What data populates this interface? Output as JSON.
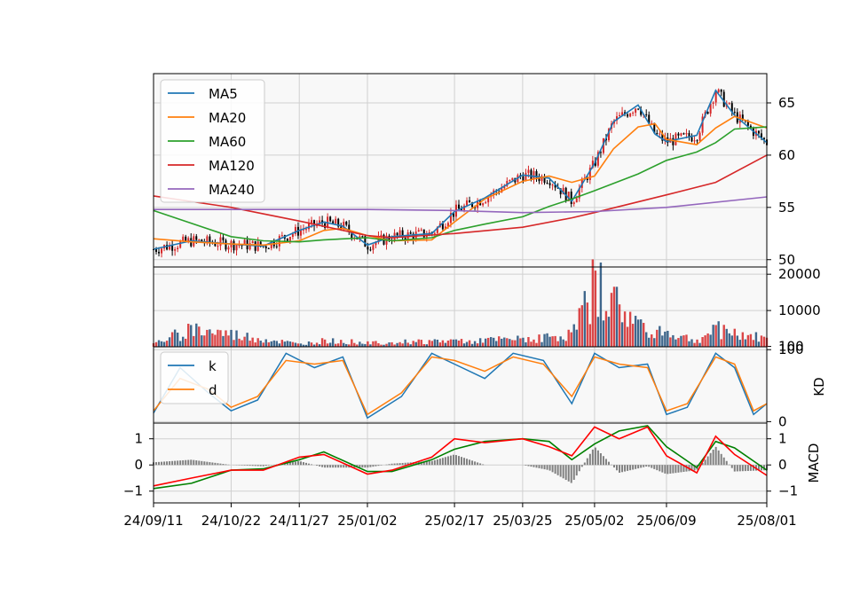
{
  "chart_data": [
    {
      "type": "candlestick",
      "panel": "price",
      "ylim": [
        49.3,
        67.8
      ],
      "yticks": [
        "50",
        "55",
        "60",
        "65"
      ],
      "grid": true,
      "legend_position": "top-left",
      "candle_colors": {
        "up": "#d62728",
        "down": "#000000"
      },
      "x_dates": [
        "24/09/11",
        "24/10/22",
        "24/11/27",
        "25/01/02",
        "25/02/17",
        "25/03/25",
        "25/05/02",
        "25/06/09",
        "25/08/01"
      ],
      "series": [
        {
          "name": "MA5",
          "color": "#1f77b4",
          "x": [
            "24/09/11",
            "24/10/01",
            "24/10/22",
            "24/11/08",
            "24/11/27",
            "24/12/10",
            "24/12/20",
            "25/01/02",
            "25/01/15",
            "25/02/05",
            "25/02/17",
            "25/03/05",
            "25/03/25",
            "25/04/08",
            "25/04/20",
            "25/05/02",
            "25/05/12",
            "25/05/25",
            "25/06/03",
            "25/06/09",
            "25/06/25",
            "25/07/05",
            "25/07/15",
            "25/08/01"
          ],
          "values": [
            51.0,
            51.8,
            51.5,
            51.3,
            52.8,
            53.6,
            53.2,
            51.4,
            52.2,
            52.5,
            54.6,
            55.9,
            58.1,
            57.8,
            55.6,
            59.2,
            63.2,
            64.8,
            62.0,
            61.3,
            61.9,
            66.2,
            63.8,
            61.2
          ]
        },
        {
          "name": "MA20",
          "color": "#ff7f0e",
          "x": [
            "24/09/11",
            "24/10/01",
            "24/10/22",
            "24/11/08",
            "24/11/27",
            "24/12/10",
            "24/12/20",
            "25/01/02",
            "25/01/15",
            "25/02/05",
            "25/02/17",
            "25/03/05",
            "25/03/25",
            "25/04/08",
            "25/04/20",
            "25/05/02",
            "25/05/12",
            "25/05/25",
            "25/06/03",
            "25/06/09",
            "25/06/25",
            "25/07/05",
            "25/07/15",
            "25/08/01"
          ],
          "values": [
            52.0,
            51.7,
            51.5,
            51.4,
            51.8,
            52.8,
            53.0,
            52.3,
            51.8,
            51.9,
            53.6,
            55.8,
            57.5,
            58.0,
            57.4,
            58.0,
            60.6,
            62.7,
            63.0,
            61.5,
            61.0,
            62.6,
            63.7,
            62.6
          ]
        },
        {
          "name": "MA60",
          "color": "#2ca02c",
          "x": [
            "24/09/11",
            "24/10/22",
            "24/11/08",
            "24/11/27",
            "24/12/10",
            "25/01/02",
            "25/01/15",
            "25/02/05",
            "25/02/17",
            "25/03/05",
            "25/03/25",
            "25/04/08",
            "25/04/20",
            "25/05/02",
            "25/05/25",
            "25/06/09",
            "25/06/25",
            "25/07/05",
            "25/07/15",
            "25/08/01"
          ],
          "values": [
            54.7,
            52.2,
            51.8,
            51.7,
            51.9,
            52.1,
            51.8,
            52.1,
            52.8,
            53.4,
            54.1,
            55.1,
            55.8,
            56.6,
            58.2,
            59.5,
            60.3,
            61.2,
            62.5,
            62.7
          ]
        },
        {
          "name": "MA120",
          "color": "#d62728",
          "x": [
            "24/09/11",
            "24/10/22",
            "24/11/27",
            "25/01/02",
            "25/01/15",
            "25/02/17",
            "25/03/25",
            "25/04/20",
            "25/05/02",
            "25/06/09",
            "25/07/05",
            "25/08/01"
          ],
          "values": [
            56.1,
            55.0,
            53.7,
            52.3,
            52.1,
            52.5,
            53.1,
            54.0,
            54.5,
            56.2,
            57.4,
            60.0
          ]
        },
        {
          "name": "MA240",
          "color": "#9467bd",
          "x": [
            "24/09/11",
            "24/11/27",
            "25/01/02",
            "25/02/17",
            "25/03/25",
            "25/05/02",
            "25/06/09",
            "25/08/01"
          ],
          "values": [
            54.8,
            54.8,
            54.8,
            54.7,
            54.5,
            54.6,
            55.0,
            56.0
          ]
        }
      ]
    },
    {
      "type": "bar",
      "panel": "volume",
      "ylim": [
        0,
        22000
      ],
      "yticks": [
        "100",
        "10000",
        "20000"
      ],
      "bar_colors": {
        "up": "#d62728",
        "down": "#1f4e79"
      },
      "x": [
        "24/09/11",
        "24/10/01",
        "24/11/27",
        "24/12/10",
        "25/01/02",
        "25/02/17",
        "25/03/25",
        "25/04/20",
        "25/05/02",
        "25/05/25",
        "25/06/25",
        "25/07/05",
        "25/08/01"
      ],
      "values": [
        1000,
        6000,
        900,
        2000,
        1500,
        2000,
        2500,
        4000,
        21000,
        7500,
        2000,
        6000,
        2500
      ]
    },
    {
      "type": "line",
      "panel": "KD",
      "ylabel": "KD",
      "ylim": [
        -2,
        104
      ],
      "yticks": [
        "0",
        "100"
      ],
      "legend_position": "top-left",
      "x": [
        "24/09/11",
        "24/09/25",
        "24/10/10",
        "24/10/22",
        "24/11/05",
        "24/11/20",
        "24/12/05",
        "24/12/20",
        "25/01/02",
        "25/01/20",
        "25/02/05",
        "25/02/17",
        "25/03/05",
        "25/03/20",
        "25/04/05",
        "25/04/20",
        "25/05/02",
        "25/05/15",
        "25/05/30",
        "25/06/09",
        "25/06/20",
        "25/07/05",
        "25/07/15",
        "25/07/25",
        "25/08/01"
      ],
      "series": [
        {
          "name": "k",
          "color": "#1f77b4",
          "values": [
            12,
            75,
            40,
            15,
            30,
            95,
            75,
            90,
            5,
            35,
            95,
            80,
            60,
            95,
            85,
            25,
            95,
            75,
            80,
            10,
            20,
            95,
            75,
            10,
            25
          ]
        },
        {
          "name": "d",
          "color": "#ff7f0e",
          "values": [
            15,
            60,
            45,
            20,
            35,
            85,
            80,
            85,
            10,
            40,
            90,
            85,
            70,
            90,
            80,
            35,
            90,
            80,
            75,
            15,
            25,
            90,
            80,
            15,
            25
          ]
        }
      ]
    },
    {
      "type": "line",
      "panel": "MACD",
      "ylabel": "MACD",
      "ylim": [
        -1.45,
        1.6
      ],
      "yticks": [
        "−1",
        "0",
        "1"
      ],
      "x": [
        "24/09/11",
        "24/10/01",
        "24/10/22",
        "24/11/08",
        "24/11/27",
        "24/12/10",
        "25/01/02",
        "25/01/15",
        "25/02/05",
        "25/02/17",
        "25/03/05",
        "25/03/25",
        "25/04/08",
        "25/04/20",
        "25/05/02",
        "25/05/15",
        "25/05/30",
        "25/06/09",
        "25/06/25",
        "25/07/05",
        "25/07/15",
        "25/08/01"
      ],
      "series": [
        {
          "name": "",
          "color": "#ff0000",
          "values": [
            -0.8,
            -0.5,
            -0.2,
            -0.2,
            0.3,
            0.4,
            -0.35,
            -0.2,
            0.3,
            1.0,
            0.85,
            1.0,
            0.7,
            0.35,
            1.45,
            1.0,
            1.45,
            0.35,
            -0.3,
            1.1,
            0.4,
            -0.4
          ]
        },
        {
          "name": "",
          "color": "#008000",
          "values": [
            -0.9,
            -0.7,
            -0.2,
            -0.15,
            0.2,
            0.5,
            -0.25,
            -0.25,
            0.2,
            0.6,
            0.9,
            1.0,
            0.9,
            0.2,
            0.8,
            1.3,
            1.5,
            0.7,
            -0.1,
            0.9,
            0.65,
            -0.2
          ]
        },
        {
          "name": "",
          "color": "#808080",
          "type": "bar",
          "values": [
            0.1,
            0.2,
            0.0,
            -0.05,
            0.15,
            -0.1,
            -0.1,
            0.05,
            0.15,
            0.4,
            0.0,
            0.0,
            -0.2,
            -0.7,
            0.7,
            -0.3,
            -0.05,
            -0.35,
            -0.2,
            0.7,
            -0.25,
            -0.2
          ]
        }
      ]
    }
  ]
}
